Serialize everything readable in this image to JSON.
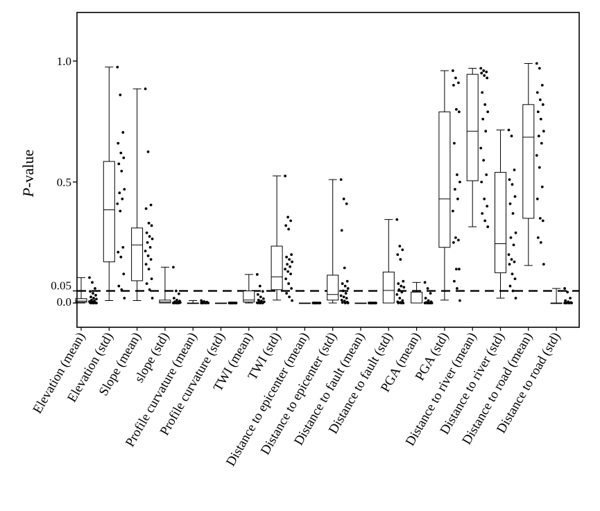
{
  "chart_data": {
    "type": "box",
    "ylabel_italic": "P",
    "ylabel_rest": "-value",
    "ylim": [
      -0.08,
      1.2
    ],
    "yticks": [
      {
        "value": 0.0,
        "label": "0.0"
      },
      {
        "value": 0.05,
        "label": "0.05"
      },
      {
        "value": 0.5,
        "label": "0.5"
      },
      {
        "value": 1.0,
        "label": "1.0"
      }
    ],
    "threshold": 0.05,
    "threshold_style": "dashed",
    "categories": [
      "Elevation (mean)",
      "Elevation (std)",
      "Slope (mean)",
      "slope (std)",
      "Profile curvature (mean)",
      "Profile curvature (std)",
      "TWI (mean)",
      "TWI (std)",
      "Distance to epicenter (mean)",
      "Distance to epicenter (std)",
      "Distance to fault (mean)",
      "Distance to fault (std)",
      "PGA (mean)",
      "PGA (std)",
      "Distance to river (mean)",
      "Distance to river (std)",
      "Distance to road (mean)",
      "Distance to road (std)"
    ],
    "boxes": [
      {
        "min": 0.0,
        "q1": 0.003,
        "median": 0.008,
        "q3": 0.018,
        "max": 0.105,
        "points": [
          0.105,
          0.085,
          0.06,
          0.048,
          0.04,
          0.032,
          0.025,
          0.02,
          0.016,
          0.012,
          0.009,
          0.006,
          0.004,
          0.002,
          0.001,
          0.0,
          0.0,
          0.0,
          0.0,
          0.0
        ]
      },
      {
        "min": 0.01,
        "q1": 0.17,
        "median": 0.385,
        "q3": 0.585,
        "max": 0.975,
        "points": [
          0.975,
          0.86,
          0.705,
          0.66,
          0.62,
          0.6,
          0.575,
          0.545,
          0.47,
          0.455,
          0.43,
          0.41,
          0.38,
          0.23,
          0.21,
          0.19,
          0.12,
          0.07,
          0.055,
          0.02
        ]
      },
      {
        "min": 0.01,
        "q1": 0.092,
        "median": 0.24,
        "q3": 0.31,
        "max": 0.885,
        "points": [
          0.885,
          0.625,
          0.405,
          0.39,
          0.33,
          0.32,
          0.29,
          0.275,
          0.265,
          0.25,
          0.23,
          0.215,
          0.195,
          0.18,
          0.16,
          0.14,
          0.1,
          0.08,
          0.055,
          0.02
        ]
      },
      {
        "min": 0.0,
        "q1": 0.0,
        "median": 0.004,
        "q3": 0.012,
        "max": 0.148,
        "points": [
          0.148,
          0.05,
          0.038,
          0.02,
          0.012,
          0.008,
          0.005,
          0.003,
          0.002,
          0.001,
          0.0,
          0.0,
          0.0,
          0.0,
          0.0,
          0.0
        ]
      },
      {
        "min": 0.0,
        "q1": 0.0,
        "median": 0.0,
        "q3": 0.0,
        "max": 0.01,
        "points": [
          0.01,
          0.006,
          0.004,
          0.003,
          0.002,
          0.001,
          0.0,
          0.0,
          0.0,
          0.0,
          0.0,
          0.0
        ]
      },
      {
        "min": 0.0,
        "q1": 0.0,
        "median": 0.0,
        "q3": 0.0,
        "max": 0.0,
        "points": [
          0.0,
          0.0,
          0.0,
          0.0,
          0.0,
          0.0,
          0.0,
          0.0,
          0.0,
          0.0
        ]
      },
      {
        "min": 0.0,
        "q1": 0.004,
        "median": 0.012,
        "q3": 0.05,
        "max": 0.118,
        "points": [
          0.118,
          0.07,
          0.048,
          0.035,
          0.025,
          0.018,
          0.012,
          0.008,
          0.005,
          0.003,
          0.002,
          0.001,
          0.0,
          0.0,
          0.0,
          0.0
        ]
      },
      {
        "min": 0.012,
        "q1": 0.055,
        "median": 0.108,
        "q3": 0.235,
        "max": 0.525,
        "points": [
          0.525,
          0.355,
          0.34,
          0.32,
          0.305,
          0.2,
          0.19,
          0.18,
          0.17,
          0.16,
          0.15,
          0.14,
          0.13,
          0.12,
          0.1,
          0.08,
          0.06,
          0.04,
          0.025,
          0.01
        ]
      },
      {
        "min": 0.0,
        "q1": 0.0,
        "median": 0.0,
        "q3": 0.0,
        "max": 0.0,
        "points": [
          0.0,
          0.0,
          0.0,
          0.0,
          0.0,
          0.0,
          0.0,
          0.0,
          0.0,
          0.0
        ]
      },
      {
        "min": 0.0,
        "q1": 0.012,
        "median": 0.035,
        "q3": 0.115,
        "max": 0.51,
        "points": [
          0.51,
          0.43,
          0.41,
          0.3,
          0.145,
          0.09,
          0.08,
          0.07,
          0.06,
          0.05,
          0.04,
          0.03,
          0.025,
          0.02,
          0.012,
          0.008,
          0.004,
          0.002,
          0.0,
          0.0
        ]
      },
      {
        "min": 0.0,
        "q1": 0.0,
        "median": 0.0,
        "q3": 0.0,
        "max": 0.0,
        "points": [
          0.0,
          0.0,
          0.0,
          0.0,
          0.0,
          0.0,
          0.0,
          0.0,
          0.0,
          0.0
        ]
      },
      {
        "min": 0.0,
        "q1": 0.0,
        "median": 0.052,
        "q3": 0.128,
        "max": 0.345,
        "points": [
          0.345,
          0.235,
          0.22,
          0.2,
          0.18,
          0.09,
          0.08,
          0.07,
          0.065,
          0.055,
          0.045,
          0.035,
          0.02,
          0.01,
          0.005,
          0.002,
          0.0,
          0.0,
          0.0
        ]
      },
      {
        "min": 0.0,
        "q1": 0.0,
        "median": 0.0,
        "q3": 0.045,
        "max": 0.085,
        "points": [
          0.085,
          0.06,
          0.04,
          0.02,
          0.01,
          0.005,
          0.002,
          0.0,
          0.0,
          0.0,
          0.0,
          0.0,
          0.0,
          0.0
        ]
      },
      {
        "min": 0.012,
        "q1": 0.23,
        "median": 0.43,
        "q3": 0.79,
        "max": 0.96,
        "points": [
          0.96,
          0.93,
          0.91,
          0.9,
          0.8,
          0.79,
          0.66,
          0.53,
          0.5,
          0.47,
          0.43,
          0.38,
          0.27,
          0.26,
          0.25,
          0.14,
          0.14,
          0.09,
          0.06,
          0.01
        ]
      },
      {
        "min": 0.315,
        "q1": 0.505,
        "median": 0.71,
        "q3": 0.945,
        "max": 0.97,
        "points": [
          0.97,
          0.96,
          0.955,
          0.95,
          0.94,
          0.93,
          0.87,
          0.82,
          0.79,
          0.76,
          0.71,
          0.64,
          0.59,
          0.53,
          0.5,
          0.43,
          0.4,
          0.37,
          0.34,
          0.315
        ]
      },
      {
        "min": 0.02,
        "q1": 0.125,
        "median": 0.245,
        "q3": 0.54,
        "max": 0.715,
        "points": [
          0.715,
          0.69,
          0.55,
          0.51,
          0.49,
          0.44,
          0.41,
          0.37,
          0.29,
          0.27,
          0.24,
          0.2,
          0.18,
          0.17,
          0.16,
          0.12,
          0.1,
          0.07,
          0.05,
          0.02
        ]
      },
      {
        "min": 0.155,
        "q1": 0.35,
        "median": 0.685,
        "q3": 0.82,
        "max": 0.99,
        "points": [
          0.99,
          0.97,
          0.9,
          0.87,
          0.84,
          0.82,
          0.79,
          0.76,
          0.71,
          0.69,
          0.66,
          0.61,
          0.56,
          0.48,
          0.43,
          0.35,
          0.34,
          0.27,
          0.25,
          0.16
        ]
      },
      {
        "min": 0.0,
        "q1": 0.0,
        "median": 0.0,
        "q3": 0.0,
        "max": 0.06,
        "points": [
          0.06,
          0.045,
          0.02,
          0.01,
          0.005,
          0.002,
          0.0,
          0.0,
          0.0,
          0.0,
          0.0,
          0.0
        ]
      }
    ]
  }
}
